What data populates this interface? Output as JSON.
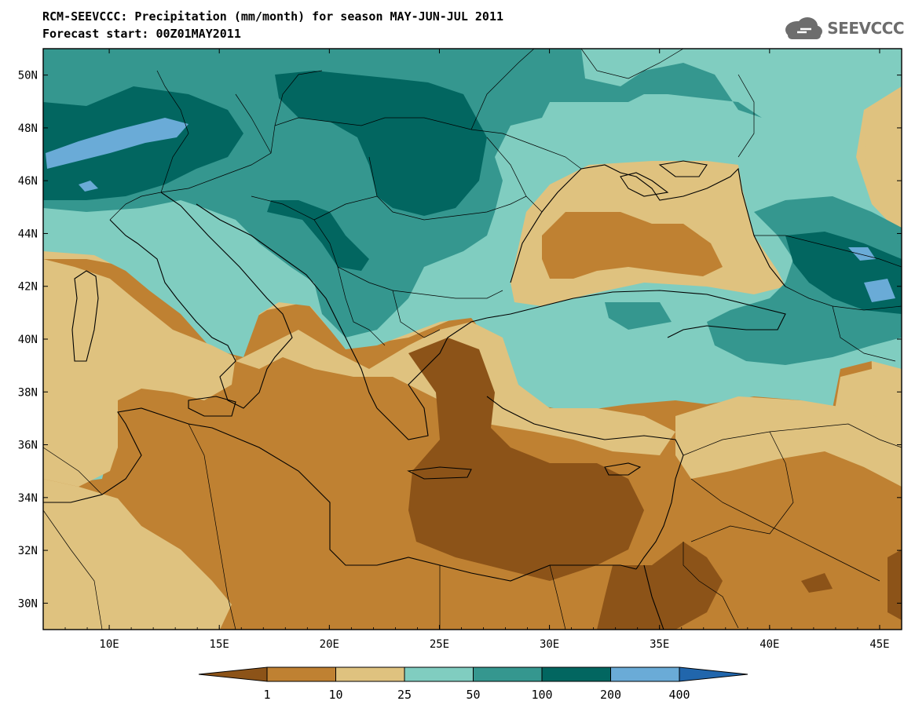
{
  "title": {
    "line1": "RCM-SEEVCCC: Precipitation (mm/month) for season MAY-JUN-JUL 2011",
    "line2": "Forecast start: 00Z01MAY2011"
  },
  "logo": {
    "text": "SEEVCCC",
    "icon": "cloud-icon"
  },
  "map": {
    "lon_range": [
      7,
      46
    ],
    "lat_range": [
      29,
      51
    ],
    "projection": "equirectangular"
  },
  "lat_ticks": [
    {
      "value": 50,
      "label": "50N"
    },
    {
      "value": 48,
      "label": "48N"
    },
    {
      "value": 46,
      "label": "46N"
    },
    {
      "value": 44,
      "label": "44N"
    },
    {
      "value": 42,
      "label": "42N"
    },
    {
      "value": 40,
      "label": "40N"
    },
    {
      "value": 38,
      "label": "38N"
    },
    {
      "value": 36,
      "label": "36N"
    },
    {
      "value": 34,
      "label": "34N"
    },
    {
      "value": 32,
      "label": "32N"
    },
    {
      "value": 30,
      "label": "30N"
    }
  ],
  "lon_ticks": [
    {
      "value": 10,
      "label": "10E"
    },
    {
      "value": 15,
      "label": "15E"
    },
    {
      "value": 20,
      "label": "20E"
    },
    {
      "value": 25,
      "label": "25E"
    },
    {
      "value": 30,
      "label": "30E"
    },
    {
      "value": 35,
      "label": "35E"
    },
    {
      "value": 40,
      "label": "40E"
    },
    {
      "value": 45,
      "label": "45E"
    }
  ],
  "colorbar": {
    "colors": [
      "#8c5318",
      "#bf8132",
      "#dfc27f",
      "#80cdc0",
      "#35978f",
      "#026660",
      "#6aabd7",
      "#2166ac"
    ],
    "labels": [
      "1",
      "10",
      "25",
      "50",
      "100",
      "200",
      "400"
    ]
  }
}
